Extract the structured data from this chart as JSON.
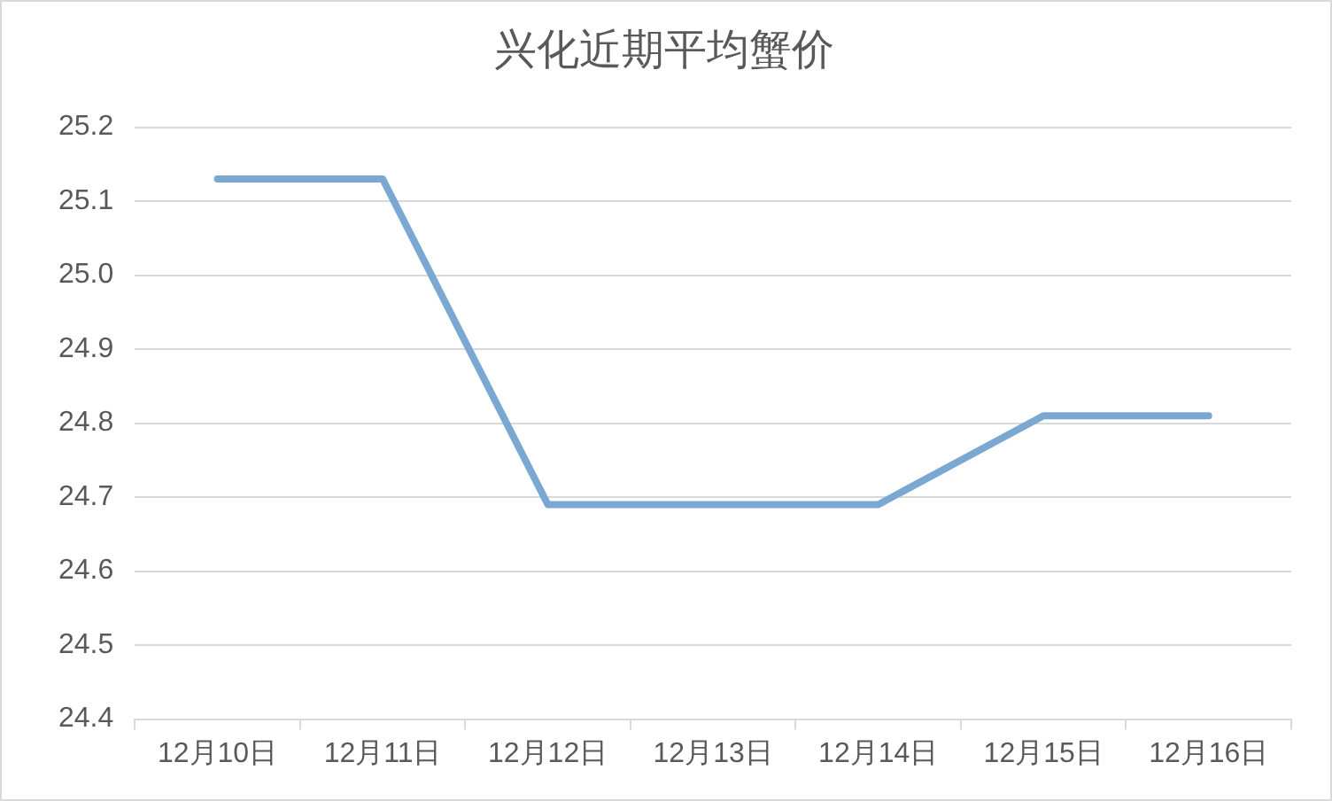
{
  "chart_data": {
    "type": "line",
    "title": "兴化近期平均蟹价",
    "categories": [
      "12月10日",
      "12月11日",
      "12月12日",
      "12月13日",
      "12月14日",
      "12月15日",
      "12月16日"
    ],
    "values": [
      25.13,
      25.13,
      24.69,
      24.69,
      24.69,
      24.81,
      24.81
    ],
    "color": "#7ba7d3",
    "ylim": [
      24.4,
      25.2
    ],
    "yticks": [
      24.4,
      24.5,
      24.6,
      24.7,
      24.8,
      24.9,
      {
        "value": 25,
        "label": "25.0"
      },
      25.1,
      25.2
    ],
    "grid": "y"
  }
}
